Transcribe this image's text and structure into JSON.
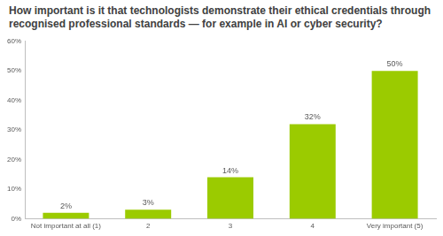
{
  "chart_data": {
    "type": "bar",
    "title": "How important is it that technologists demonstrate their ethical credentials through recognised professional standards — for example in AI or cyber security?",
    "categories": [
      "Not important at all (1)",
      "2",
      "3",
      "4",
      "Very important (5)"
    ],
    "values": [
      2,
      3,
      14,
      32,
      50
    ],
    "value_labels": [
      "2%",
      "3%",
      "14%",
      "32%",
      "50%"
    ],
    "data_labels": true,
    "color": "#9bcb00",
    "ylim": [
      0,
      60
    ],
    "yticks": [
      {
        "value": 0,
        "label": "0%"
      },
      {
        "value": 10,
        "label": "10%"
      },
      {
        "value": 20,
        "label": "20%"
      },
      {
        "value": 30,
        "label": "30%"
      },
      {
        "value": 40,
        "label": "40%"
      },
      {
        "value": 50,
        "label": "50%"
      },
      {
        "value": 60,
        "label": "60%"
      }
    ],
    "grid": false
  }
}
